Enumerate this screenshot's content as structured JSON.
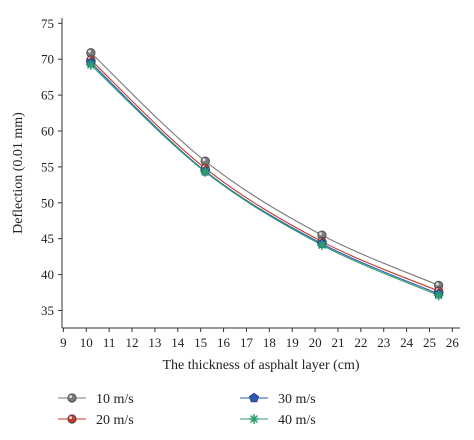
{
  "chart_data": {
    "type": "line",
    "title": "",
    "xlabel": "The thickness of asphalt layer (cm)",
    "ylabel": "Deflection (0.01 mm)",
    "xlim": [
      9,
      26
    ],
    "ylim": [
      33,
      75
    ],
    "xticks": [
      9,
      10,
      11,
      12,
      13,
      14,
      15,
      16,
      17,
      18,
      19,
      20,
      21,
      22,
      23,
      24,
      25,
      26
    ],
    "yticks": [
      35,
      40,
      45,
      50,
      55,
      60,
      65,
      70,
      75
    ],
    "x": [
      10.2,
      15.2,
      20.3,
      25.4
    ],
    "grid": false,
    "legend_position": "bottom",
    "series": [
      {
        "name": "10 m/s",
        "values": [
          70.9,
          55.8,
          45.5,
          38.5
        ],
        "color": "#7a7a7a",
        "marker": "circle"
      },
      {
        "name": "20 m/s",
        "values": [
          69.9,
          54.8,
          44.6,
          37.7
        ],
        "color": "#c0392b",
        "marker": "circle"
      },
      {
        "name": "30 m/s",
        "values": [
          69.5,
          54.4,
          44.3,
          37.3
        ],
        "color": "#2c58b0",
        "marker": "pentagon"
      },
      {
        "name": "40 m/s",
        "values": [
          69.2,
          54.3,
          44.1,
          37.1
        ],
        "color": "#2e9e6b",
        "marker": "star"
      }
    ]
  }
}
